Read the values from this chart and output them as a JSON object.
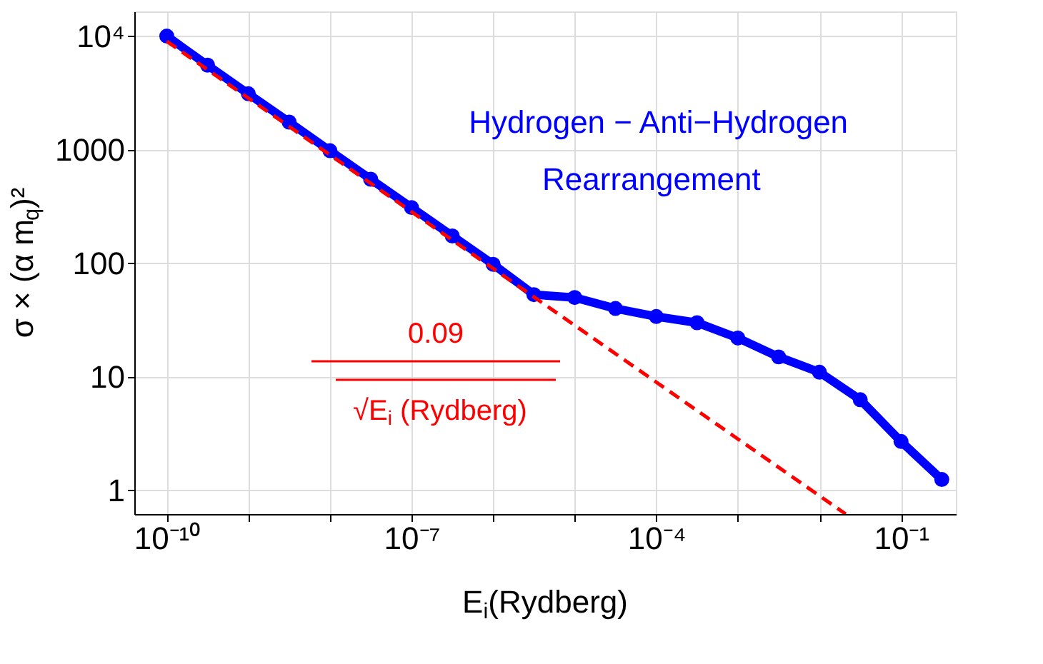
{
  "chart_data": {
    "type": "line",
    "xlabel": "E$_{i}$(Rydberg)",
    "ylabel": "σ × (α m$_{q}$)²",
    "log": "xy",
    "grid": true,
    "xlim": [
      4e-11,
      0.47
    ],
    "ylim": [
      0.62,
      16500
    ],
    "xticks": [
      {
        "value": 1e-10,
        "label": "10⁻¹⁰"
      },
      {
        "value": 1e-09,
        "label": null
      },
      {
        "value": 1e-08,
        "label": null
      },
      {
        "value": 1e-07,
        "label": "10⁻⁷"
      },
      {
        "value": 1e-06,
        "label": null
      },
      {
        "value": 1e-05,
        "label": null
      },
      {
        "value": 0.0001,
        "label": "10⁻⁴"
      },
      {
        "value": 0.001,
        "label": null
      },
      {
        "value": 0.01,
        "label": null
      },
      {
        "value": 0.1,
        "label": "10⁻¹"
      }
    ],
    "yticks": [
      1,
      10,
      100,
      1000,
      {
        "value": 10000,
        "label": "10⁴"
      }
    ],
    "series": [
      {
        "color": "#0000ff",
        "marker": "circle",
        "line_style": "solid",
        "x": [
          1e-10,
          3.16e-10,
          1e-09,
          3.16e-09,
          1e-08,
          3.16e-08,
          1e-07,
          3.16e-07,
          1e-06,
          3.16e-06,
          1e-05,
          3.16e-05,
          0.0001,
          0.000316,
          0.001,
          0.00316,
          0.01,
          0.0316,
          0.1,
          0.316
        ],
        "values": [
          10000,
          5550,
          3110,
          1750,
          980,
          550,
          310,
          174,
          98,
          53,
          50,
          40,
          34,
          30,
          22,
          15,
          11,
          6.3,
          2.7,
          1.25
        ]
      },
      {
        "color": "#ff0000",
        "marker": "none",
        "line_style": "dashed",
        "x": [
          1e-10,
          0.021
        ],
        "values": [
          9000,
          0.62
        ]
      }
    ],
    "annotations": [
      "Hydrogen − Anti−Hydrogen",
      "Rearrangement",
      "0.09",
      "√E$_{i}$ (Rydberg)"
    ]
  }
}
